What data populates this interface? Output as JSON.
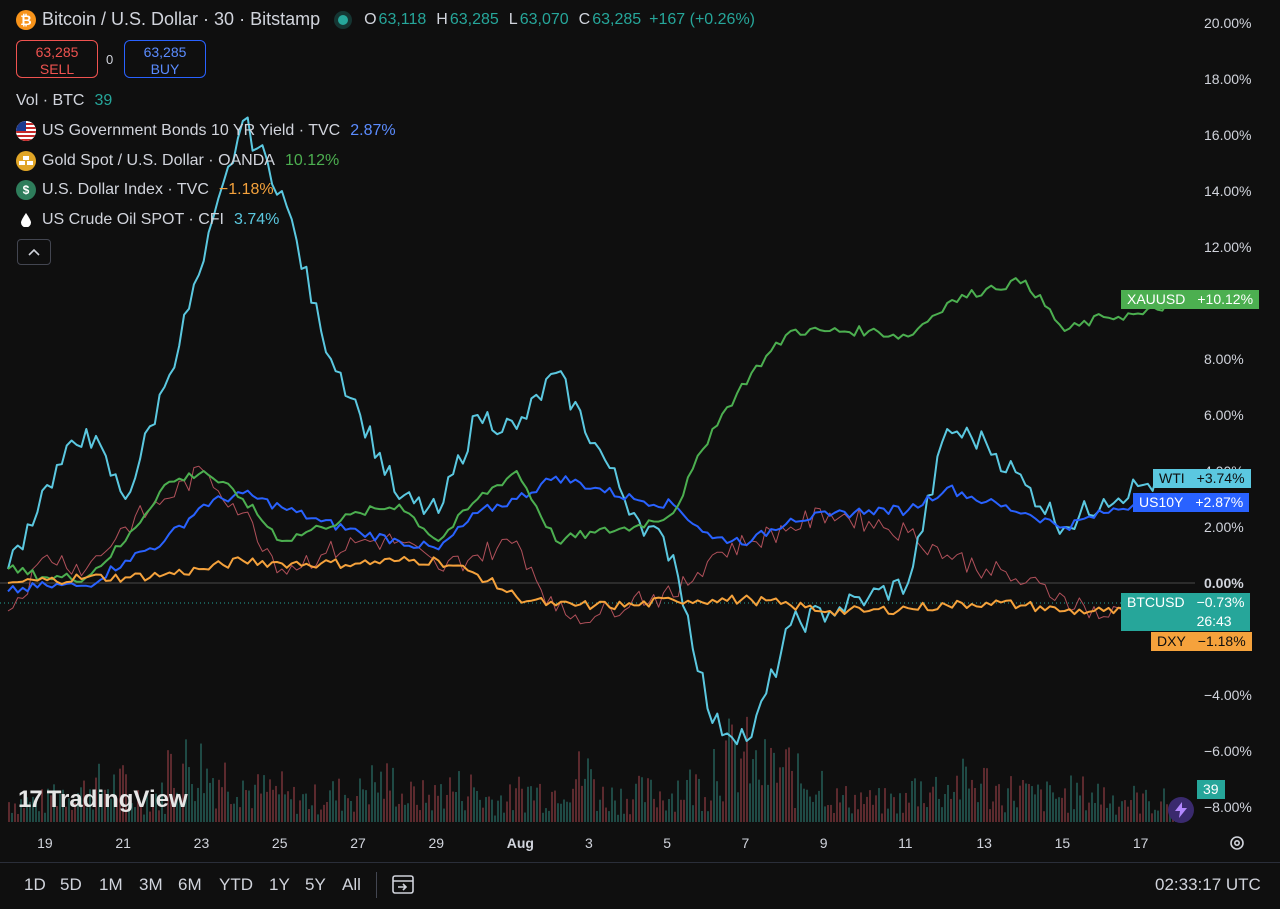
{
  "header": {
    "symbol_icon": "bitcoin-icon",
    "title": "Bitcoin / U.S. Dollar · 30 · Bitstamp",
    "o_label": "O",
    "o_value": "63,118",
    "h_label": "H",
    "h_value": "63,285",
    "l_label": "L",
    "l_value": "63,070",
    "c_label": "C",
    "c_value": "63,285",
    "change": "+167 (+0.26%)"
  },
  "trade": {
    "sell_price": "63,285",
    "sell_label": "SELL",
    "spread": "0",
    "buy_price": "63,285",
    "buy_label": "BUY"
  },
  "legend": {
    "volume_label": "Vol · BTC",
    "volume_value": "39",
    "items": [
      {
        "label": "US Government Bonds 10 YR Yield · TVC",
        "value": "2.87%",
        "color": "#5b8cff",
        "icon": "us-flag-icon"
      },
      {
        "label": "Gold Spot / U.S. Dollar · OANDA",
        "value": "10.12%",
        "color": "#4caf50",
        "icon": "gold-bars-icon"
      },
      {
        "label": "U.S. Dollar Index · TVC",
        "value": "−1.18%",
        "color": "#f5a23c",
        "icon": "dollar-icon"
      },
      {
        "label": "US Crude Oil SPOT · CFI",
        "value": "3.74%",
        "color": "#5bc8e0",
        "icon": "oil-drop-icon"
      }
    ],
    "collapse_icon": "chevron-up-icon"
  },
  "price_scale": {
    "labels": [
      "20.00%",
      "18.00%",
      "16.00%",
      "14.00%",
      "12.00%",
      "10.00%",
      "8.00%",
      "6.00%",
      "4.00%",
      "2.00%",
      "0.00%",
      "−2.00%",
      "−4.00%",
      "−6.00%",
      "−8.00%"
    ]
  },
  "time_scale": {
    "labels": [
      "19",
      "21",
      "23",
      "25",
      "27",
      "29",
      "Aug",
      "3",
      "5",
      "7",
      "9",
      "11",
      "13",
      "15",
      "17"
    ]
  },
  "tags": {
    "xauusd": {
      "name": "XAUUSD",
      "value": "+10.12%",
      "color": "#4caf50"
    },
    "wti": {
      "name": "WTI",
      "value": "+3.74%",
      "color": "#5bc8e0"
    },
    "us10y": {
      "name": "US10Y",
      "value": "+2.87%",
      "color": "#2962ff"
    },
    "btcusd": {
      "name": "BTCUSD",
      "value": "−0.73%",
      "countdown": "26:43",
      "color": "#26a69a"
    },
    "dxy": {
      "name": "DXY",
      "value": "−1.18%",
      "color": "#f5a23c"
    },
    "volume": {
      "value": "39",
      "color": "#26a69a"
    }
  },
  "branding": {
    "logo_text": "TradingView",
    "logo_mark": "17"
  },
  "bottom_bar": {
    "timeframes": [
      "1D",
      "5D",
      "1M",
      "3M",
      "6M",
      "YTD",
      "1Y",
      "5Y",
      "All"
    ],
    "compare_icon": "date-range-icon",
    "clock": "02:33:17 UTC",
    "settings_icon": "gear-icon"
  },
  "chart_data": {
    "type": "line",
    "x": [
      "Jul 18",
      "Jul 19",
      "Jul 20",
      "Jul 21",
      "Jul 22",
      "Jul 23",
      "Jul 24",
      "Jul 25",
      "Jul 26",
      "Jul 27",
      "Jul 28",
      "Jul 29",
      "Jul 30",
      "Jul 31",
      "Aug 1",
      "Aug 2",
      "Aug 3",
      "Aug 4",
      "Aug 5",
      "Aug 6",
      "Aug 7",
      "Aug 8",
      "Aug 9",
      "Aug 10",
      "Aug 11",
      "Aug 12",
      "Aug 13",
      "Aug 14",
      "Aug 15",
      "Aug 16",
      "Aug 17"
    ],
    "y_unit": "%",
    "ylim": [
      -8,
      20
    ],
    "grid": false,
    "series": [
      {
        "name": "US Crude Oil SPOT",
        "color": "#5bc8e0",
        "values": [
          0.5,
          3.5,
          5.5,
          3.0,
          7.0,
          11.5,
          16.5,
          14.0,
          9.0,
          6.0,
          3.0,
          2.5,
          6.0,
          5.5,
          7.5,
          5.0,
          2.5,
          1.0,
          -5.0,
          -5.5,
          -1.5,
          -1.0,
          -0.5,
          0.0,
          5.5,
          5.0,
          3.5,
          2.0,
          3.0,
          3.5,
          3.74
        ]
      },
      {
        "name": "US Government Bonds 10 YR Yield",
        "color": "#2962ff",
        "values": [
          -0.3,
          -0.1,
          -0.1,
          0.8,
          1.5,
          2.8,
          3.2,
          2.7,
          2.2,
          1.8,
          1.5,
          1.2,
          2.5,
          3.0,
          3.8,
          3.4,
          3.0,
          2.8,
          1.6,
          1.5,
          2.3,
          2.4,
          2.6,
          2.6,
          3.4,
          2.9,
          2.5,
          2.0,
          2.5,
          2.9,
          2.87
        ]
      },
      {
        "name": "Gold Spot / U.S. Dollar",
        "color": "#4caf50",
        "values": [
          0.5,
          0.2,
          0.2,
          1.5,
          3.5,
          4.0,
          3.0,
          1.5,
          2.0,
          2.5,
          2.8,
          1.5,
          3.0,
          4.0,
          1.5,
          1.8,
          2.0,
          2.5,
          5.5,
          7.5,
          9.0,
          9.0,
          9.0,
          8.8,
          10.0,
          10.5,
          10.8,
          9.0,
          9.5,
          9.6,
          10.12
        ]
      },
      {
        "name": "U.S. Dollar Index",
        "color": "#f5a23c",
        "values": [
          0.0,
          0.1,
          0.2,
          0.2,
          0.3,
          0.5,
          0.8,
          0.7,
          0.7,
          0.7,
          0.8,
          0.8,
          0.3,
          -0.5,
          -0.8,
          -0.8,
          -0.8,
          -0.6,
          -0.6,
          -0.6,
          -0.8,
          -1.0,
          -1.0,
          -0.9,
          -0.8,
          -0.7,
          -0.8,
          -1.0,
          -1.0,
          -1.1,
          -1.18
        ]
      },
      {
        "name": "BTCUSD",
        "color": "#b0505a",
        "values": [
          -1.0,
          1.0,
          0.5,
          2.0,
          3.0,
          4.0,
          2.5,
          0.5,
          1.0,
          1.5,
          1.5,
          0.5,
          1.0,
          1.5,
          -1.0,
          -1.2,
          -0.5,
          -0.5,
          1.0,
          1.5,
          2.0,
          2.5,
          2.2,
          1.8,
          1.0,
          0.5,
          0.0,
          -0.5,
          -1.2,
          -0.8,
          -0.73
        ]
      }
    ],
    "volume": [
      8,
      12,
      14,
      10,
      22,
      18,
      12,
      9,
      11,
      15,
      10,
      13,
      9,
      12,
      18,
      10,
      11,
      14,
      25,
      20,
      16,
      9,
      8,
      13,
      15,
      12,
      10,
      11,
      9,
      8,
      5
    ]
  }
}
